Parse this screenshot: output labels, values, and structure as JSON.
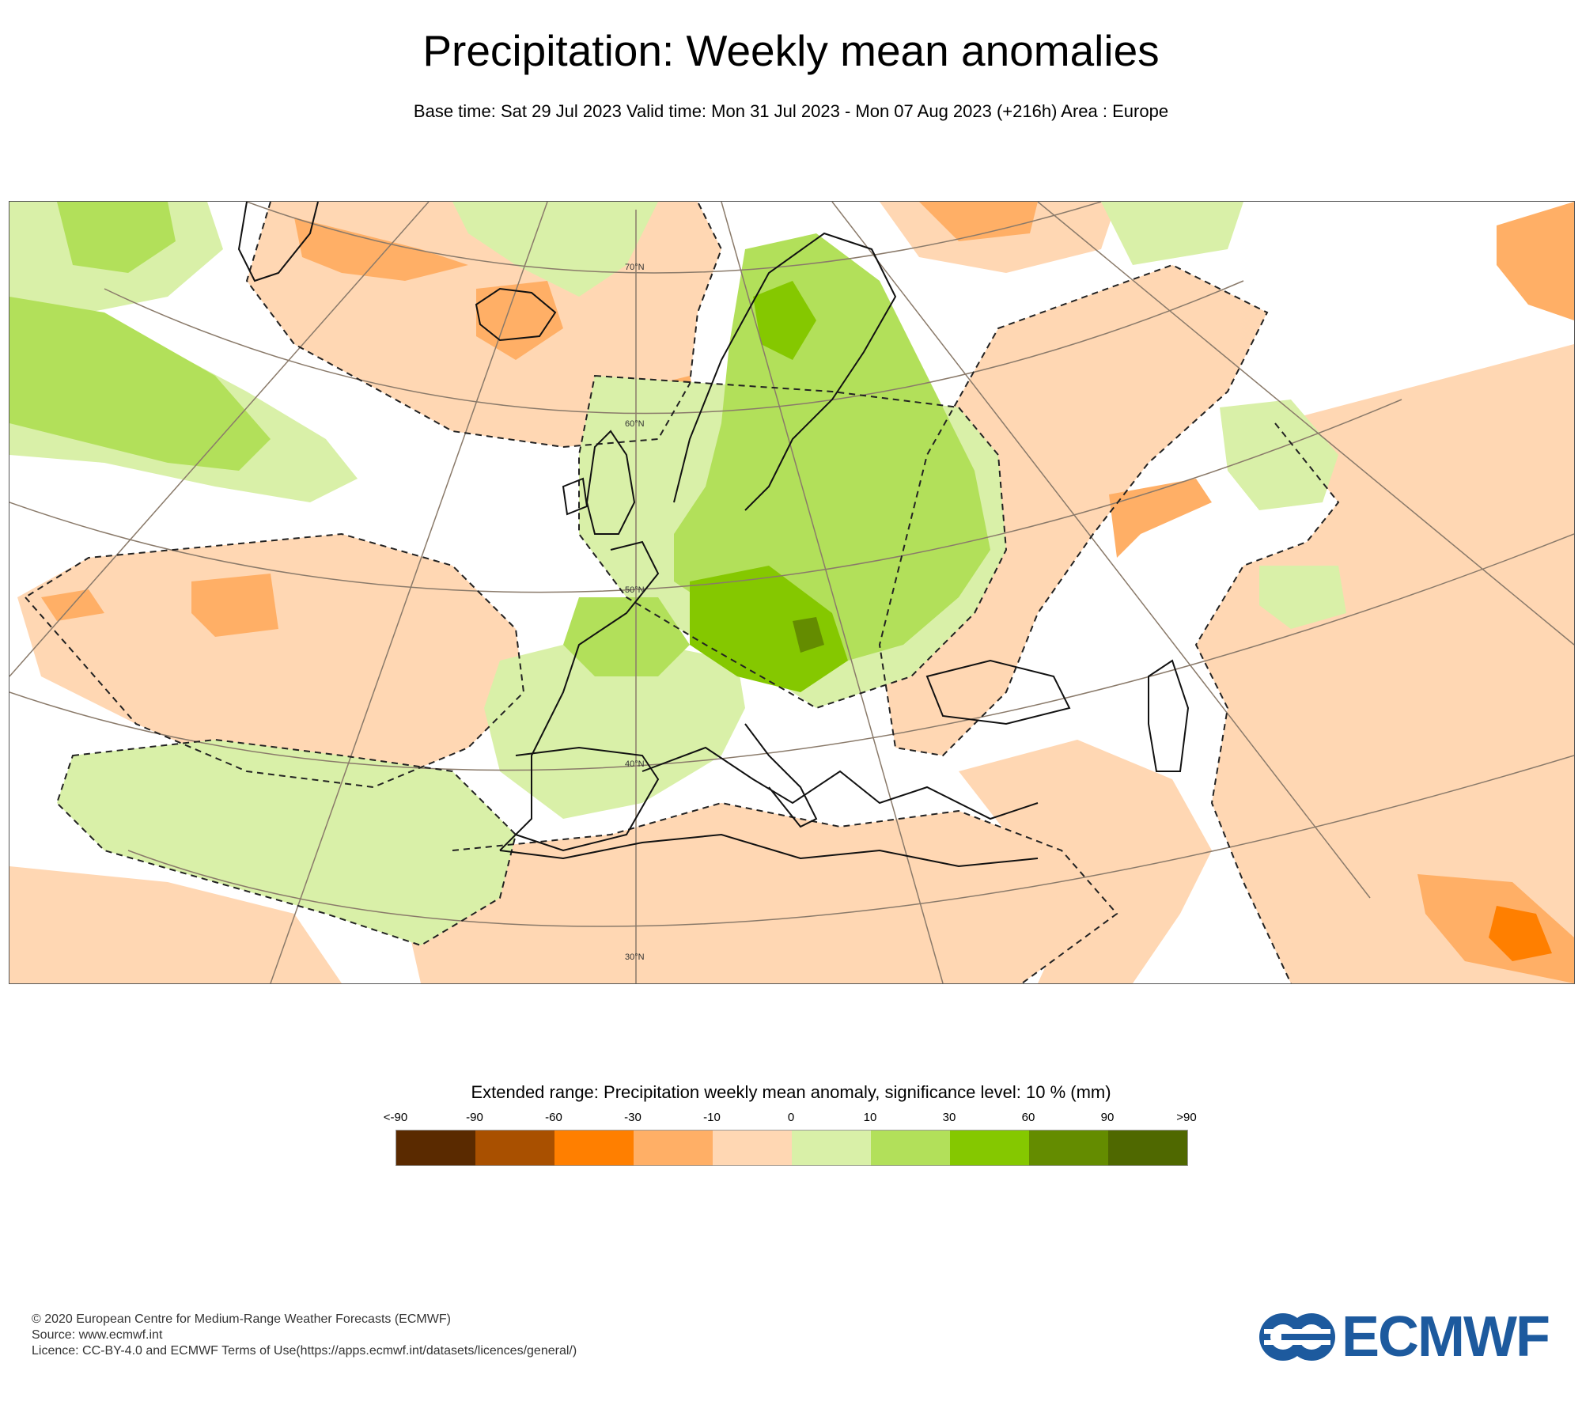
{
  "header": {
    "title": "Precipitation: Weekly mean anomalies",
    "subtitle": "Base time: Sat 29 Jul 2023 Valid time: Mon 31 Jul 2023 - Mon 07 Aug 2023 (+216h) Area : Europe"
  },
  "map": {
    "lat_labels": [
      "70°N",
      "60°N",
      "50°N",
      "40°N",
      "30°N"
    ]
  },
  "legend": {
    "title": "Extended range: Precipitation weekly mean anomaly, significance level: 10 % (mm)",
    "labels": [
      "<-90",
      "-90",
      "-60",
      "-30",
      "-10",
      "0",
      "10",
      "30",
      "60",
      "90",
      ">90"
    ],
    "colors": [
      "#5a2a00",
      "#a95000",
      "#ff7f00",
      "#ffaf66",
      "#ffd7b3",
      "#d9f0a8",
      "#b2e05a",
      "#85c800",
      "#648c00",
      "#4f6800"
    ]
  },
  "footer": {
    "line1": "© 2020 European Centre for Medium-Range Weather Forecasts (ECMWF)",
    "line2": "Source: www.ecmwf.int",
    "line3": "Licence: CC-BY-4.0 and ECMWF Terms of Use(https://apps.ecmwf.int/datasets/licences/general/)"
  },
  "logo": {
    "text": "ECMWF",
    "color": "#1d5a9e"
  }
}
